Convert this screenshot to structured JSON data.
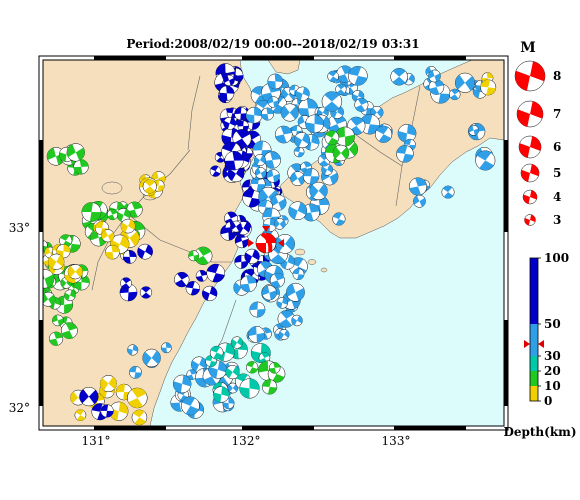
{
  "title": "Period:2008/02/19 00:00--2018/02/19 03:31",
  "lat_labels": [
    "33°",
    "32°"
  ],
  "lon_labels": [
    "131°",
    "132°",
    "133°"
  ],
  "magnitude_legend": {
    "title": "M",
    "items": [
      "8",
      "7",
      "6",
      "5",
      "4",
      "3"
    ]
  },
  "depth_scale": {
    "unit_label": "Depth(km)",
    "tick_labels": [
      "100",
      "50",
      "30",
      "20",
      "10",
      "0"
    ],
    "colors": {
      "deep": "#0000c8",
      "mid": "#2f9fe8",
      "shallow_mid": "#00c8a8",
      "shallow": "#22c822",
      "surface": "#f0d000"
    }
  },
  "colors": {
    "sea": "#dcfcfc",
    "land": "#f5dfbc",
    "main_event": "#ff0000",
    "legend_ball": "#ff0000",
    "marker": "#e00000"
  }
}
